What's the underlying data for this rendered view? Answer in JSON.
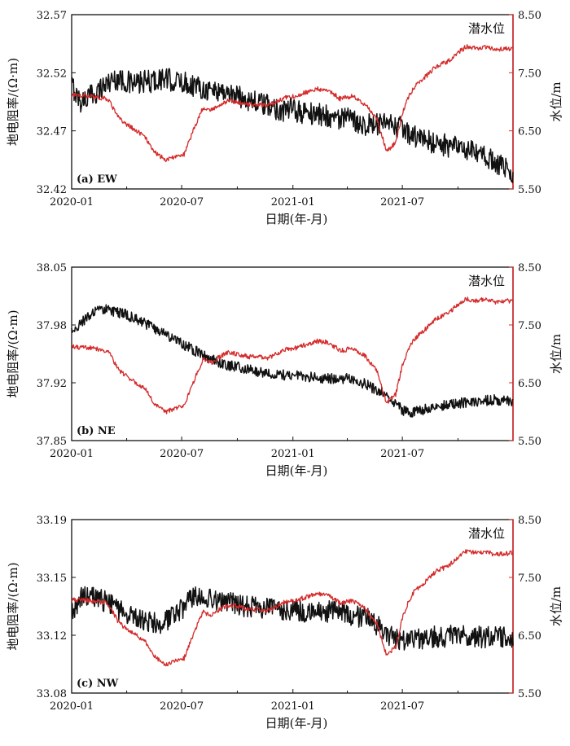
{
  "colors": {
    "resistivity": "#111111",
    "water_level": "#d42a2a",
    "axis": "#111111"
  },
  "chart_data": [
    {
      "type": "line",
      "panel_label": "(a) EW",
      "xlabel": "日期(年-月)",
      "ylabel": "地电阻率/(Ω·m)",
      "y2label": "水位/m",
      "legend": "潜水位",
      "x_ticks": [
        "2020-01",
        "2020-07",
        "2021-01",
        "2021-07"
      ],
      "y_ticks": [
        "32.42",
        "32.47",
        "32.52",
        "32.57"
      ],
      "y2_ticks": [
        "5.50",
        "6.50",
        "7.50",
        "8.50"
      ],
      "ylim": [
        32.42,
        32.57
      ],
      "y2lim": [
        5.5,
        8.5
      ],
      "xlim": [
        "2020-01-01",
        "2021-12-31"
      ],
      "series": [
        {
          "axis": "left",
          "x": [
            "2020-01-01",
            "2020-01-15",
            "2020-02-01",
            "2020-02-15",
            "2020-03-01",
            "2020-03-15",
            "2020-04-01",
            "2020-04-15",
            "2020-05-01",
            "2020-05-15",
            "2020-06-01",
            "2020-06-15",
            "2020-07-01",
            "2020-07-15",
            "2020-08-01",
            "2020-08-15",
            "2020-09-01",
            "2020-09-15",
            "2020-10-01",
            "2020-10-15",
            "2020-11-01",
            "2020-11-15",
            "2020-12-01",
            "2020-12-15",
            "2021-01-01",
            "2021-01-15",
            "2021-02-01",
            "2021-02-15",
            "2021-03-01",
            "2021-03-15",
            "2021-04-01",
            "2021-04-15",
            "2021-05-01",
            "2021-05-15",
            "2021-06-01",
            "2021-06-15",
            "2021-07-01",
            "2021-07-15",
            "2021-08-01",
            "2021-08-15",
            "2021-09-01",
            "2021-09-15",
            "2021-10-01",
            "2021-10-15",
            "2021-11-01",
            "2021-11-15",
            "2021-12-01",
            "2021-12-31"
          ],
          "values": [
            32.51,
            32.495,
            32.5,
            32.505,
            32.512,
            32.515,
            32.512,
            32.51,
            32.512,
            32.513,
            32.515,
            32.513,
            32.512,
            32.51,
            32.508,
            32.505,
            32.505,
            32.503,
            32.5,
            32.498,
            32.495,
            32.492,
            32.49,
            32.488,
            32.488,
            32.486,
            32.485,
            32.484,
            32.483,
            32.481,
            32.48,
            32.478,
            32.476,
            32.475,
            32.475,
            32.474,
            32.472,
            32.466,
            32.463,
            32.461,
            32.459,
            32.457,
            32.455,
            32.453,
            32.45,
            32.447,
            32.444,
            32.432
          ],
          "noise": 0.01
        },
        {
          "axis": "right",
          "x": [
            "2020-01-01",
            "2020-02-01",
            "2020-03-01",
            "2020-03-20",
            "2020-04-10",
            "2020-05-01",
            "2020-05-20",
            "2020-06-05",
            "2020-06-20",
            "2020-07-05",
            "2020-07-20",
            "2020-08-05",
            "2020-08-20",
            "2020-09-01",
            "2020-09-15",
            "2020-10-01",
            "2020-10-20",
            "2020-11-05",
            "2020-11-20",
            "2020-12-05",
            "2020-12-20",
            "2021-01-05",
            "2021-01-20",
            "2021-02-10",
            "2021-03-01",
            "2021-03-20",
            "2021-04-10",
            "2021-05-01",
            "2021-05-20",
            "2021-06-05",
            "2021-06-20",
            "2021-07-01",
            "2021-07-10",
            "2021-07-20",
            "2021-08-05",
            "2021-08-25",
            "2021-09-15",
            "2021-10-01",
            "2021-10-15",
            "2021-11-01",
            "2021-11-15",
            "2021-12-01",
            "2021-12-31"
          ],
          "values": [
            7.12,
            7.1,
            7.05,
            6.7,
            6.55,
            6.4,
            6.1,
            6.0,
            6.05,
            6.1,
            6.5,
            6.9,
            6.85,
            6.95,
            7.02,
            7.0,
            6.95,
            6.95,
            6.93,
            7.0,
            7.08,
            7.1,
            7.15,
            7.22,
            7.2,
            7.05,
            7.1,
            6.95,
            6.7,
            6.15,
            6.3,
            6.8,
            7.05,
            7.25,
            7.4,
            7.6,
            7.7,
            7.85,
            7.95,
            7.92,
            7.94,
            7.9,
            7.92
          ],
          "noise": 0.04
        }
      ]
    },
    {
      "type": "line",
      "panel_label": "(b) NE",
      "xlabel": "日期(年-月)",
      "ylabel": "地电阻率/(Ω·m)",
      "y2label": "水位/m",
      "legend": "潜水位",
      "x_ticks": [
        "2020-01",
        "2020-07",
        "2021-01",
        "2021-07"
      ],
      "y_ticks": [
        "37.85",
        "37.92",
        "37.98",
        "38.05"
      ],
      "y2_ticks": [
        "5.50",
        "6.50",
        "7.50",
        "8.50"
      ],
      "ylim": [
        37.85,
        38.05
      ],
      "y2lim": [
        5.5,
        8.5
      ],
      "xlim": [
        "2020-01-01",
        "2021-12-31"
      ],
      "series": [
        {
          "axis": "left",
          "x": [
            "2020-01-01",
            "2020-01-15",
            "2020-02-01",
            "2020-02-15",
            "2020-03-01",
            "2020-03-15",
            "2020-04-01",
            "2020-04-15",
            "2020-05-01",
            "2020-05-15",
            "2020-06-01",
            "2020-06-15",
            "2020-07-01",
            "2020-07-15",
            "2020-08-01",
            "2020-08-15",
            "2020-09-01",
            "2020-09-15",
            "2020-10-01",
            "2020-10-15",
            "2020-11-01",
            "2020-11-15",
            "2020-12-01",
            "2020-12-15",
            "2021-01-01",
            "2021-01-15",
            "2021-02-01",
            "2021-02-15",
            "2021-03-01",
            "2021-03-15",
            "2021-04-01",
            "2021-04-15",
            "2021-05-01",
            "2021-05-15",
            "2021-06-01",
            "2021-06-15",
            "2021-07-01",
            "2021-07-15",
            "2021-08-01",
            "2021-08-15",
            "2021-09-01",
            "2021-09-15",
            "2021-10-01",
            "2021-10-15",
            "2021-11-01",
            "2021-11-15",
            "2021-12-01",
            "2021-12-31"
          ],
          "values": [
            37.975,
            37.985,
            37.995,
            38.0,
            38.002,
            37.998,
            37.995,
            37.99,
            37.985,
            37.98,
            37.975,
            37.968,
            37.962,
            37.957,
            37.95,
            37.945,
            37.94,
            37.937,
            37.935,
            37.933,
            37.93,
            37.928,
            37.927,
            37.926,
            37.925,
            37.924,
            37.923,
            37.922,
            37.922,
            37.921,
            37.922,
            37.92,
            37.915,
            37.91,
            37.905,
            37.895,
            37.885,
            37.882,
            37.885,
            37.888,
            37.89,
            37.892,
            37.893,
            37.894,
            37.895,
            37.896,
            37.897,
            37.896
          ],
          "noise": 0.006
        },
        {
          "axis": "right",
          "x": [
            "2020-01-01",
            "2020-02-01",
            "2020-03-01",
            "2020-03-20",
            "2020-04-10",
            "2020-05-01",
            "2020-05-20",
            "2020-06-05",
            "2020-06-20",
            "2020-07-05",
            "2020-07-20",
            "2020-08-05",
            "2020-08-20",
            "2020-09-01",
            "2020-09-15",
            "2020-10-01",
            "2020-10-20",
            "2020-11-05",
            "2020-11-20",
            "2020-12-05",
            "2020-12-20",
            "2021-01-05",
            "2021-01-20",
            "2021-02-10",
            "2021-03-01",
            "2021-03-20",
            "2021-04-10",
            "2021-05-01",
            "2021-05-20",
            "2021-06-05",
            "2021-06-20",
            "2021-07-01",
            "2021-07-10",
            "2021-07-20",
            "2021-08-05",
            "2021-08-25",
            "2021-09-15",
            "2021-10-01",
            "2021-10-15",
            "2021-11-01",
            "2021-11-15",
            "2021-12-01",
            "2021-12-31"
          ],
          "values": [
            7.12,
            7.1,
            7.05,
            6.7,
            6.55,
            6.4,
            6.1,
            6.0,
            6.05,
            6.1,
            6.5,
            6.9,
            6.85,
            6.95,
            7.02,
            7.0,
            6.95,
            6.95,
            6.93,
            7.0,
            7.08,
            7.1,
            7.15,
            7.22,
            7.2,
            7.05,
            7.1,
            6.95,
            6.7,
            6.15,
            6.3,
            6.8,
            7.05,
            7.25,
            7.4,
            7.6,
            7.7,
            7.85,
            7.95,
            7.92,
            7.94,
            7.9,
            7.92
          ],
          "noise": 0.04
        }
      ]
    },
    {
      "type": "line",
      "panel_label": "(c) NW",
      "xlabel": "日期(年-月)",
      "ylabel": "地电阻率/(Ω·m)",
      "y2label": "水位/m",
      "legend": "潜水位",
      "x_ticks": [
        "2020-01",
        "2020-07",
        "2021-01",
        "2021-07"
      ],
      "y_ticks": [
        "33.08",
        "33.12",
        "33.15",
        "33.19"
      ],
      "y2_ticks": [
        "5.50",
        "6.50",
        "7.50",
        "8.50"
      ],
      "ylim": [
        33.08,
        33.19
      ],
      "y2lim": [
        5.5,
        8.5
      ],
      "xlim": [
        "2020-01-01",
        "2021-12-31"
      ],
      "series": [
        {
          "axis": "left",
          "x": [
            "2020-01-01",
            "2020-01-15",
            "2020-02-01",
            "2020-02-15",
            "2020-03-01",
            "2020-03-15",
            "2020-04-01",
            "2020-04-15",
            "2020-05-01",
            "2020-05-15",
            "2020-06-01",
            "2020-06-15",
            "2020-07-01",
            "2020-07-15",
            "2020-08-01",
            "2020-08-15",
            "2020-09-01",
            "2020-09-15",
            "2020-10-01",
            "2020-10-15",
            "2020-11-01",
            "2020-11-15",
            "2020-12-01",
            "2020-12-15",
            "2021-01-01",
            "2021-01-15",
            "2021-02-01",
            "2021-02-15",
            "2021-03-01",
            "2021-03-15",
            "2021-04-01",
            "2021-04-15",
            "2021-05-01",
            "2021-05-15",
            "2021-06-01",
            "2021-06-15",
            "2021-07-01",
            "2021-07-15",
            "2021-08-01",
            "2021-08-15",
            "2021-09-01",
            "2021-09-15",
            "2021-10-01",
            "2021-10-15",
            "2021-11-01",
            "2021-11-15",
            "2021-12-01",
            "2021-12-31"
          ],
          "values": [
            33.13,
            33.14,
            33.142,
            33.14,
            33.137,
            33.133,
            33.131,
            33.128,
            33.126,
            33.124,
            33.125,
            33.128,
            33.133,
            33.14,
            33.141,
            33.14,
            33.138,
            33.137,
            33.136,
            33.135,
            33.134,
            33.133,
            33.134,
            33.133,
            33.133,
            33.132,
            33.132,
            33.131,
            33.132,
            33.131,
            33.13,
            33.129,
            33.128,
            33.125,
            33.12,
            33.115,
            33.114,
            33.115,
            33.114,
            33.116,
            33.115,
            33.116,
            33.117,
            33.115,
            33.116,
            33.115,
            33.116,
            33.114
          ],
          "noise": 0.007
        },
        {
          "axis": "right",
          "x": [
            "2020-01-01",
            "2020-02-01",
            "2020-03-01",
            "2020-03-20",
            "2020-04-10",
            "2020-05-01",
            "2020-05-20",
            "2020-06-05",
            "2020-06-20",
            "2020-07-05",
            "2020-07-20",
            "2020-08-05",
            "2020-08-20",
            "2020-09-01",
            "2020-09-15",
            "2020-10-01",
            "2020-10-20",
            "2020-11-05",
            "2020-11-20",
            "2020-12-05",
            "2020-12-20",
            "2021-01-05",
            "2021-01-20",
            "2021-02-10",
            "2021-03-01",
            "2021-03-20",
            "2021-04-10",
            "2021-05-01",
            "2021-05-20",
            "2021-06-05",
            "2021-06-20",
            "2021-07-01",
            "2021-07-10",
            "2021-07-20",
            "2021-08-05",
            "2021-08-25",
            "2021-09-15",
            "2021-10-01",
            "2021-10-15",
            "2021-11-01",
            "2021-11-15",
            "2021-12-01",
            "2021-12-31"
          ],
          "values": [
            7.12,
            7.1,
            7.05,
            6.7,
            6.55,
            6.4,
            6.1,
            6.0,
            6.05,
            6.1,
            6.5,
            6.9,
            6.85,
            6.95,
            7.02,
            7.0,
            6.95,
            6.95,
            6.93,
            7.0,
            7.08,
            7.1,
            7.15,
            7.22,
            7.2,
            7.05,
            7.1,
            6.95,
            6.7,
            6.15,
            6.3,
            6.8,
            7.05,
            7.25,
            7.4,
            7.6,
            7.7,
            7.85,
            7.95,
            7.92,
            7.94,
            7.9,
            7.92
          ],
          "noise": 0.04
        }
      ]
    }
  ]
}
